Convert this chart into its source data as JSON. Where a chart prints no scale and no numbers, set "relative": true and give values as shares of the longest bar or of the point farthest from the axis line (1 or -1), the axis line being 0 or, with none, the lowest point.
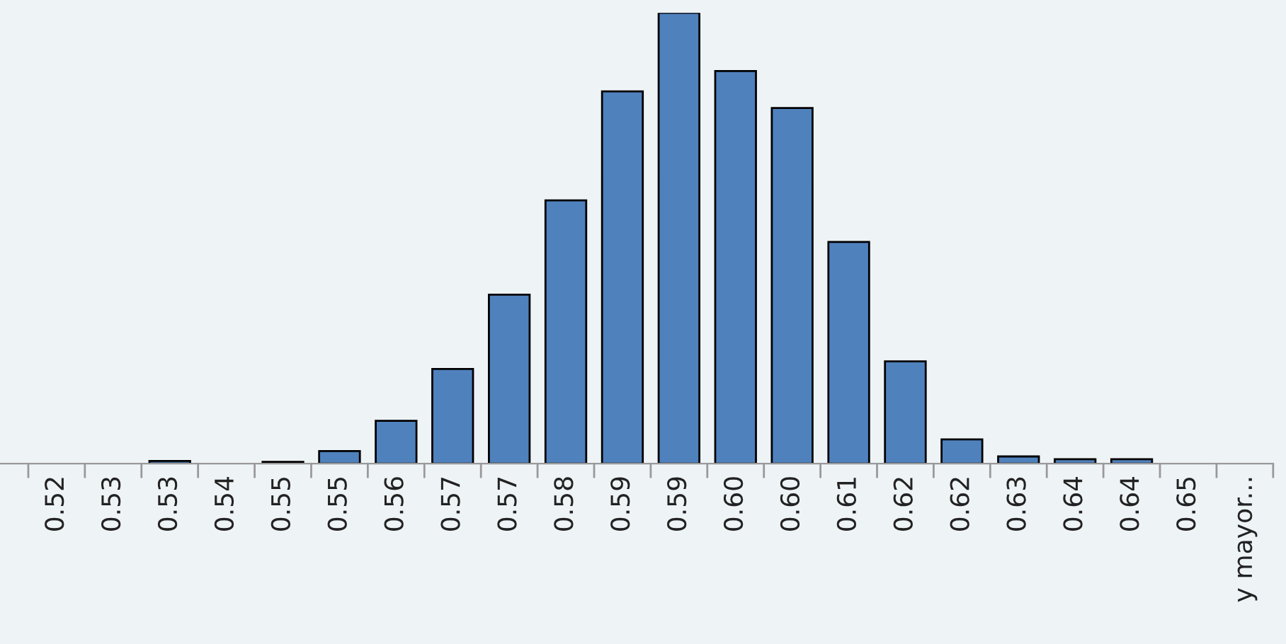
{
  "chart_data": {
    "type": "bar",
    "relative": true,
    "categories": [
      "0.52",
      "0.53",
      "0.53",
      "0.54",
      "0.55",
      "0.55",
      "0.56",
      "0.57",
      "0.57",
      "0.58",
      "0.59",
      "0.59",
      "0.60",
      "0.60",
      "0.61",
      "0.62",
      "0.62",
      "0.63",
      "0.64",
      "0.64",
      "0.65",
      "y mayor..."
    ],
    "values": [
      0,
      0,
      0.006,
      0,
      0.004,
      0.028,
      0.095,
      0.21,
      0.375,
      0.584,
      0.826,
      1,
      0.871,
      0.789,
      0.492,
      0.227,
      0.054,
      0.016,
      0.01,
      0.01,
      0,
      0
    ],
    "color": "#4f81bd"
  }
}
